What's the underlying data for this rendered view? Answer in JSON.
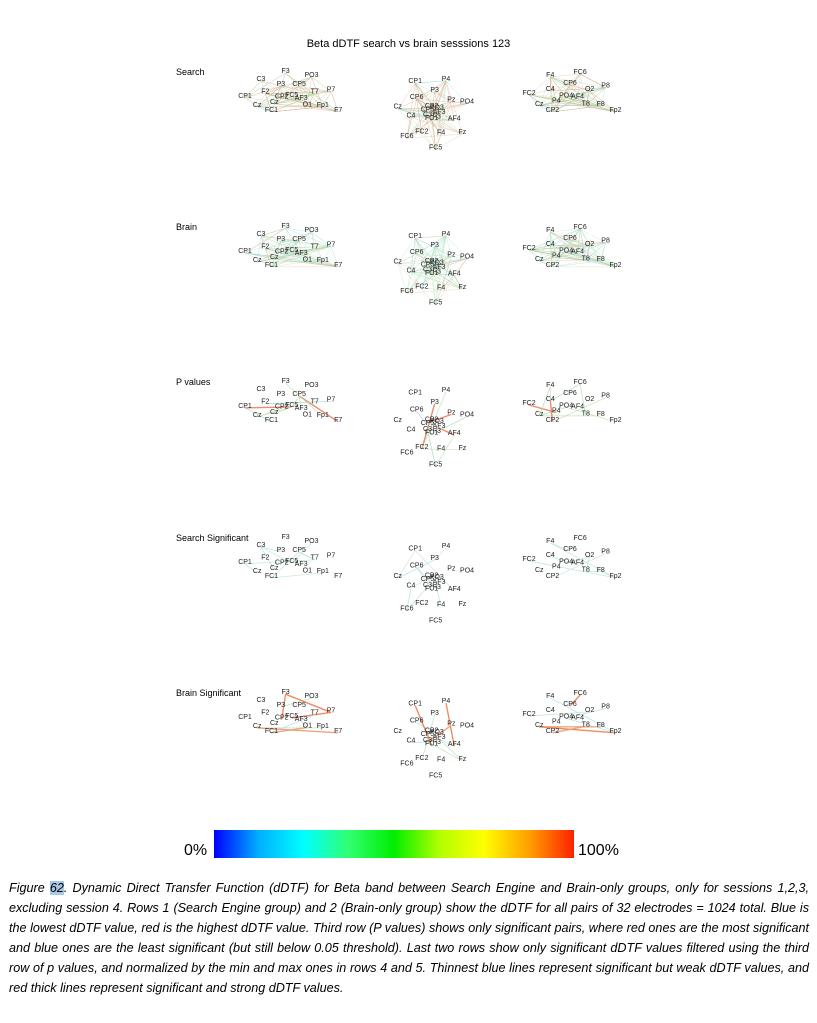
{
  "figure": {
    "title": "Beta dDTF search vs brain sesssions 123",
    "rows": [
      {
        "label": "Search",
        "mode": "dense",
        "tone": "mixed"
      },
      {
        "label": "Brain",
        "mode": "dense",
        "tone": "cool"
      },
      {
        "label": "P values",
        "mode": "sparse",
        "tone": "significance"
      },
      {
        "label": "Search Significant",
        "mode": "sparse",
        "tone": "weak"
      },
      {
        "label": "Brain Significant",
        "mode": "sparse",
        "tone": "strong"
      }
    ],
    "views": {
      "left": [
        "FC1",
        "Cz",
        "CP1",
        "Cz",
        "F2",
        "C3",
        "CP2",
        "P3",
        "F3",
        "FC5",
        "CP5",
        "PO3",
        "AF3",
        "T7",
        "P7",
        "O1",
        "Fp1",
        "F7"
      ],
      "top": [
        "AF3",
        "AF4",
        "Fz",
        "F3",
        "F4",
        "FC5",
        "FC1",
        "FC2",
        "FC6",
        "C3",
        "C4",
        "Cz",
        "CP5",
        "CP6",
        "CP1",
        "CP2",
        "P3",
        "P4",
        "PO3",
        "Pz",
        "PO4"
      ],
      "right": [
        "CP2",
        "Cz",
        "FC2",
        "P4",
        "C4",
        "F4",
        "PO4",
        "CP6",
        "FC6",
        "AF4",
        "O2",
        "P8",
        "T8",
        "F8",
        "Fp2"
      ]
    },
    "colorbar": {
      "min_label": "0%",
      "max_label": "100%",
      "colors": [
        "#0000ff",
        "#00b0ff",
        "#00ffff",
        "#30ff70",
        "#00ee00",
        "#b0ff00",
        "#ffff00",
        "#ffa000",
        "#ff2000"
      ]
    },
    "caption": {
      "prefix": "Figure ",
      "number": "62",
      "text": ". Dynamic Direct Transfer Function (dDTF) for Beta band between Search Engine and Brain-only groups, only for sessions 1,2,3, excluding session 4. Rows 1 (Search Engine group) and 2 (Brain-only group) show the dDTF for all pairs of 32 electrodes = 1024 total. Blue is the lowest dDTF value, red is the highest dDTF value. Third row (P values) shows only significant pairs, where red ones are the most significant and blue ones are the least significant (but still below 0.05 threshold). Last two rows show only significant dDTF values filtered using the third row of p values, and normalized by the min and max ones in rows 4 and 5. Thinnest blue lines represent significant but weak dDTF values, and red thick lines represent significant and strong dDTF values."
    }
  }
}
